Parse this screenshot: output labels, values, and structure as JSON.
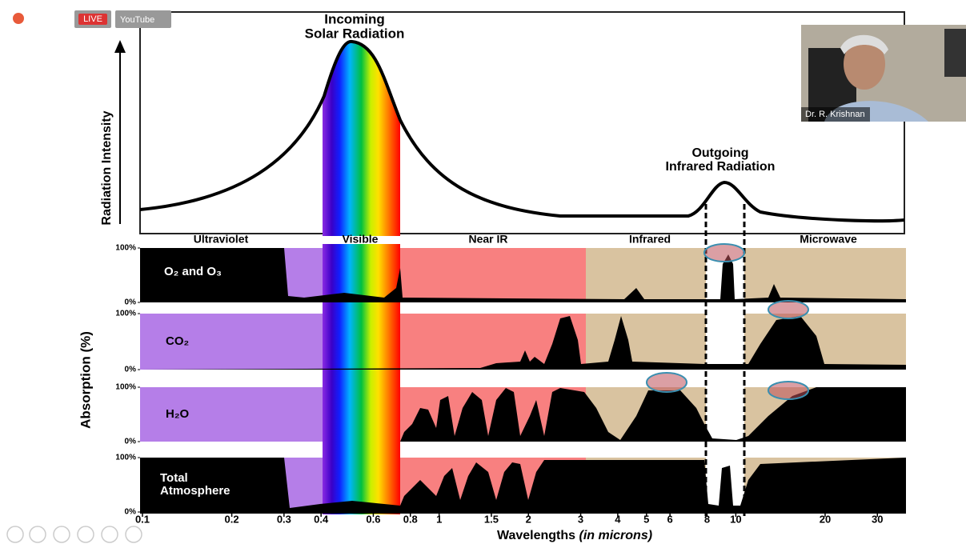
{
  "toolbar": {
    "live": "LIVE",
    "source": "YouTube"
  },
  "webcam": {
    "name": "Dr. R. Krishnan"
  },
  "figure": {
    "title": [
      "Incoming",
      "Solar Radiation"
    ],
    "ylabel_top": "Radiation Intensity",
    "ir_title": [
      "Outgoing",
      "Infrared Radiation"
    ],
    "bands": [
      "Ultraviolet",
      "Visible",
      "Near IR",
      "Infrared",
      "Microwave"
    ],
    "panels": [
      "O₂ and O₃",
      "CO₂",
      "H₂O",
      "Total Atmosphere"
    ],
    "yticks": [
      {
        "value": 100,
        "label": "100%"
      },
      {
        "value": 0,
        "label": "0%"
      }
    ],
    "ylabel": "Absorption (%)",
    "xlabel": "Wavelengths",
    "xlabel_unit": "(in microns)",
    "xlim": [
      0.1,
      37
    ],
    "xticks": [
      0.1,
      0.2,
      0.3,
      0.4,
      0.6,
      0.8,
      1,
      1.5,
      2,
      3,
      4,
      5,
      6,
      8,
      10,
      20,
      30
    ]
  }
}
